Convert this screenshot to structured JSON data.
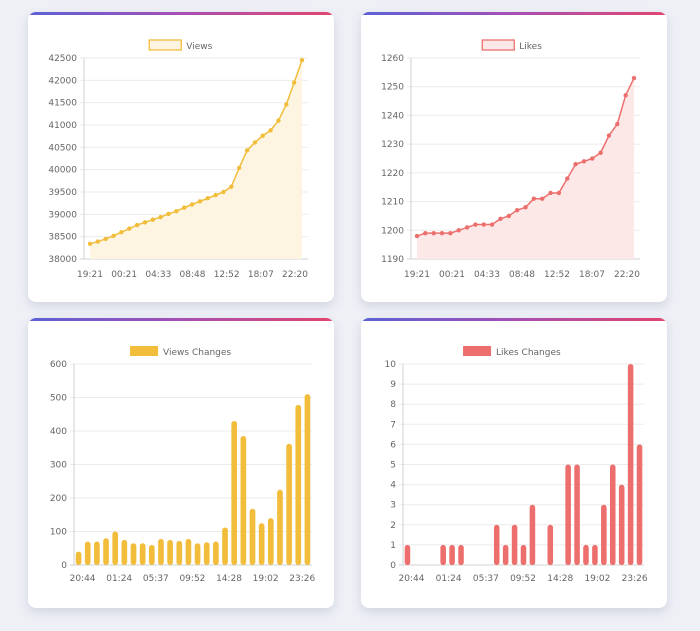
{
  "chart_data": [
    {
      "id": "views",
      "type": "line",
      "legend": "Views",
      "color": "#f1bd3b",
      "fill": "#fdf4e1",
      "ylim": [
        38000,
        42500
      ],
      "yticks": [
        "38000",
        "38500",
        "39000",
        "39500",
        "40000",
        "40500",
        "41000",
        "41500",
        "42000",
        "42500"
      ],
      "xticks": [
        "19:21",
        "00:21",
        "04:33",
        "08:48",
        "12:52",
        "18:07",
        "22:20"
      ],
      "values": [
        38340,
        38390,
        38450,
        38520,
        38600,
        38680,
        38760,
        38820,
        38880,
        38940,
        39010,
        39070,
        39150,
        39220,
        39290,
        39360,
        39430,
        39500,
        39620,
        40040,
        40430,
        40610,
        40760,
        40880,
        41100,
        41460,
        41950,
        42450
      ]
    },
    {
      "id": "likes",
      "type": "line",
      "legend": "Likes",
      "color": "#ec6f6d",
      "fill": "#fde8e8",
      "ylim": [
        1190,
        1260
      ],
      "yticks": [
        "1190",
        "1200",
        "1210",
        "1220",
        "1230",
        "1240",
        "1250",
        "1260"
      ],
      "xticks": [
        "19:21",
        "00:21",
        "04:33",
        "08:48",
        "12:52",
        "18:07",
        "22:20"
      ],
      "values": [
        1198,
        1199,
        1199,
        1199,
        1199,
        1200,
        1201,
        1202,
        1202,
        1202,
        1204,
        1205,
        1207,
        1208,
        1211,
        1211,
        1213,
        1213,
        1218,
        1223,
        1224,
        1225,
        1227,
        1233,
        1237,
        1247,
        1253
      ]
    },
    {
      "id": "views_changes",
      "type": "bar",
      "legend": "Views Changes",
      "color": "#f1bd3b",
      "ylim": [
        0,
        600
      ],
      "yticks": [
        "0",
        "100",
        "200",
        "300",
        "400",
        "500",
        "600"
      ],
      "xticks": [
        "20:44",
        "01:24",
        "05:37",
        "09:52",
        "14:28",
        "19:02",
        "23:26"
      ],
      "values": [
        40,
        70,
        70,
        80,
        100,
        75,
        65,
        65,
        60,
        78,
        75,
        72,
        78,
        65,
        68,
        70,
        112,
        430,
        385,
        168,
        125,
        140,
        225,
        362,
        478,
        510
      ]
    },
    {
      "id": "likes_changes",
      "type": "bar",
      "legend": "Likes Changes",
      "color": "#ec6f6d",
      "ylim": [
        0,
        10
      ],
      "yticks": [
        "0",
        "1",
        "2",
        "3",
        "4",
        "5",
        "6",
        "7",
        "8",
        "9",
        "10"
      ],
      "xticks": [
        "20:44",
        "01:24",
        "05:37",
        "09:52",
        "14:28",
        "19:02",
        "23:26"
      ],
      "values": [
        1,
        0,
        0,
        0,
        1,
        1,
        1,
        0,
        0,
        0,
        2,
        1,
        2,
        1,
        3,
        0,
        2,
        0,
        5,
        5,
        1,
        1,
        3,
        5,
        4,
        10,
        6
      ]
    }
  ]
}
